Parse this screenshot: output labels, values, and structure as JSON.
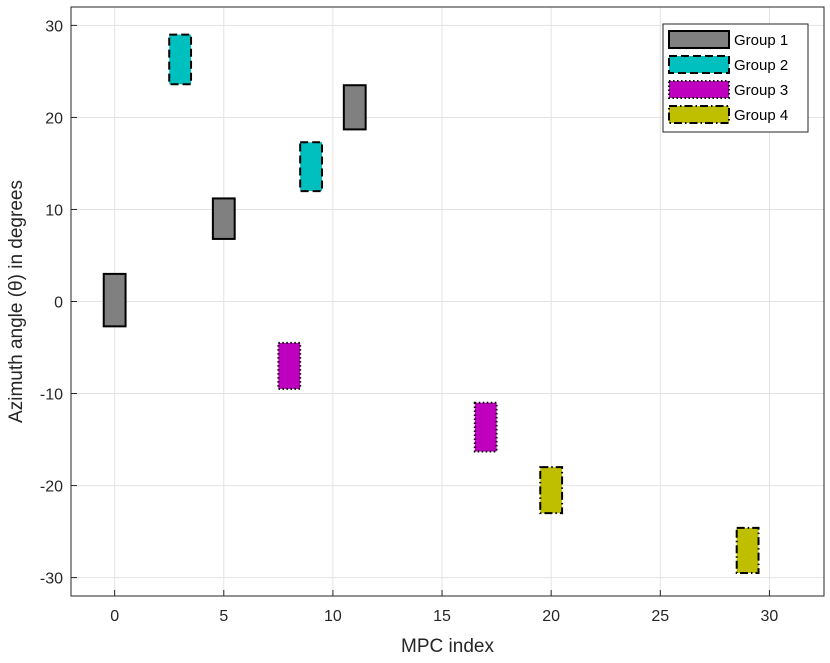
{
  "chart_data": {
    "type": "bar",
    "subtype": "floating-range-rectangles",
    "xlabel": "MPC index",
    "ylabel": "Azimuth angle (θ) in degrees",
    "xlim": [
      -2,
      32.5
    ],
    "ylim": [
      -32,
      32
    ],
    "xticks": [
      0,
      5,
      10,
      15,
      20,
      25,
      30
    ],
    "yticks": [
      -30,
      -20,
      -10,
      0,
      10,
      20,
      30
    ],
    "xtick_labels": [
      "0",
      "5",
      "10",
      "15",
      "20",
      "25",
      "30"
    ],
    "ytick_labels": [
      "-30",
      "-20",
      "-10",
      "0",
      "10",
      "20",
      "30"
    ],
    "grid": true,
    "legend_position": "top-right",
    "bar_width": 1,
    "series": [
      {
        "name": "Group 1",
        "color": "#808080",
        "line_style": "solid",
        "boxes": [
          {
            "x": 0,
            "y_low": -2.7,
            "y_high": 3.0
          },
          {
            "x": 5,
            "y_low": 6.8,
            "y_high": 11.2
          },
          {
            "x": 11,
            "y_low": 18.7,
            "y_high": 23.5
          }
        ]
      },
      {
        "name": "Group 2",
        "color": "#00BFBF",
        "line_style": "dashed",
        "boxes": [
          {
            "x": 3,
            "y_low": 23.6,
            "y_high": 29.0
          },
          {
            "x": 9,
            "y_low": 12.0,
            "y_high": 17.3
          }
        ]
      },
      {
        "name": "Group 3",
        "color": "#BF00BF",
        "line_style": "dotted",
        "boxes": [
          {
            "x": 8,
            "y_low": -9.5,
            "y_high": -4.5
          },
          {
            "x": 17,
            "y_low": -16.3,
            "y_high": -11.0
          }
        ]
      },
      {
        "name": "Group 4",
        "color": "#BFBF00",
        "line_style": "dash-dot",
        "boxes": [
          {
            "x": 20,
            "y_low": -23.0,
            "y_high": -18.0
          },
          {
            "x": 29,
            "y_low": -29.5,
            "y_high": -24.6
          }
        ]
      }
    ]
  }
}
